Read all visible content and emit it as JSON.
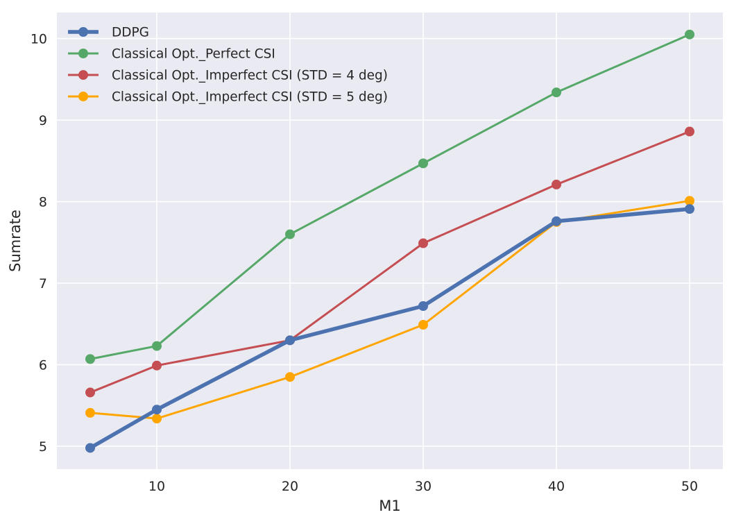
{
  "chart_data": {
    "type": "line",
    "xlabel": "M1",
    "ylabel": "Sumrate",
    "x": [
      5,
      10,
      20,
      30,
      40,
      50
    ],
    "xticks": [
      10,
      20,
      30,
      40,
      50
    ],
    "yticks": [
      5,
      6,
      7,
      8,
      9,
      10
    ],
    "xlim": [
      2.5,
      52.5
    ],
    "ylim": [
      4.72,
      10.32
    ],
    "grid": true,
    "legend_position": "top-left",
    "background": "#eaeaf2",
    "series": [
      {
        "name": "DDPG",
        "color": "#4c72b0",
        "emphasis": true,
        "values": [
          4.98,
          5.45,
          6.3,
          6.72,
          7.76,
          7.91
        ]
      },
      {
        "name": "Classical Opt._Perfect CSI",
        "color": "#55a868",
        "values": [
          6.07,
          6.23,
          7.6,
          8.47,
          9.34,
          10.05
        ]
      },
      {
        "name": "Classical Opt._Imperfect CSI (STD = 4 deg)",
        "color": "#c44e52",
        "values": [
          5.66,
          5.99,
          6.3,
          7.49,
          8.21,
          8.86
        ]
      },
      {
        "name": "Classical Opt._Imperfect CSI (STD = 5 deg)",
        "color": "#ffa500",
        "values": [
          5.41,
          5.34,
          5.85,
          6.49,
          7.75,
          8.01
        ]
      }
    ]
  }
}
